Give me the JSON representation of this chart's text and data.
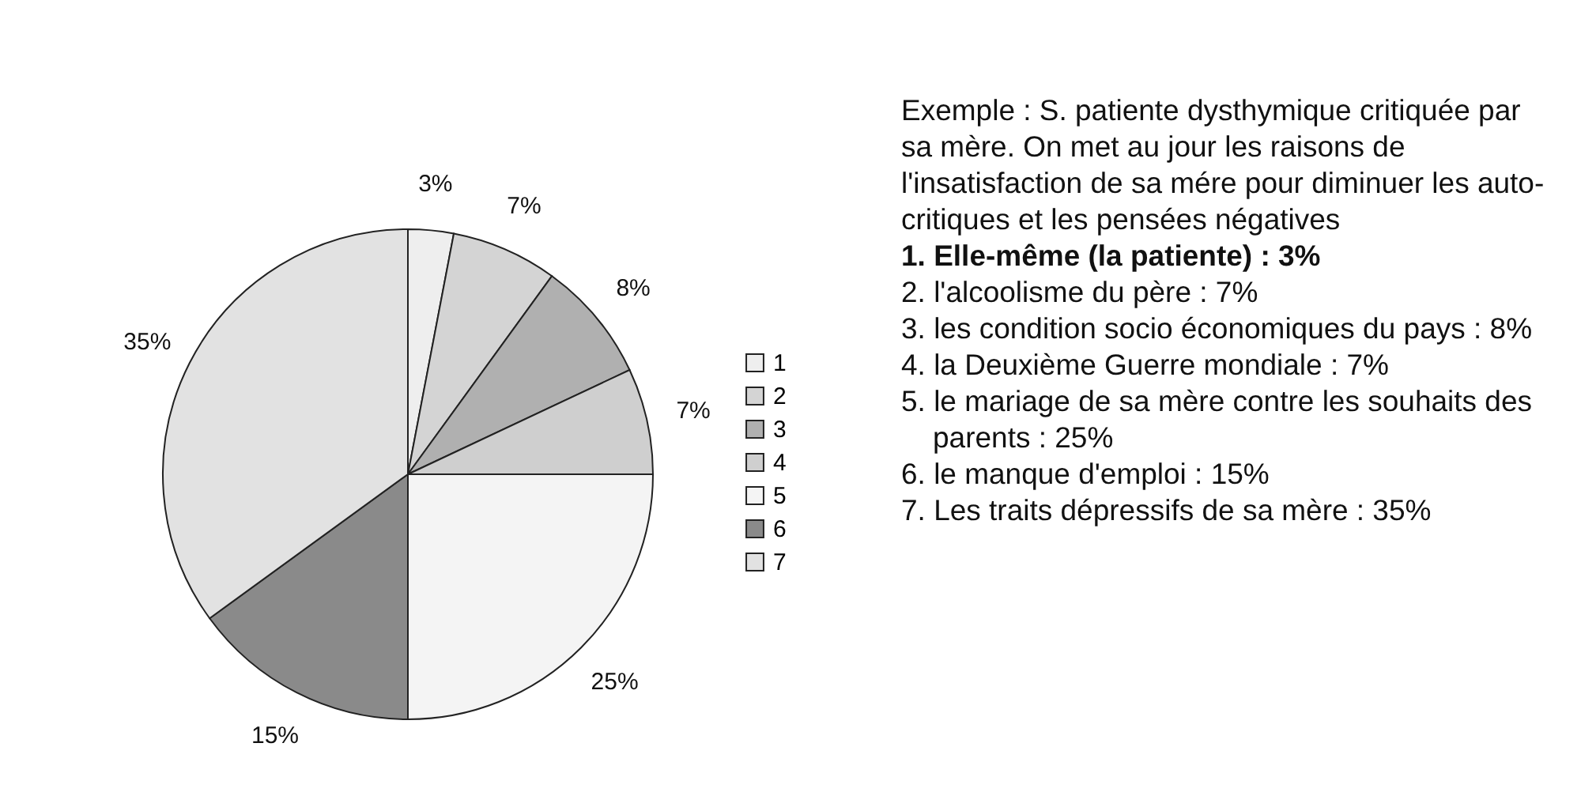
{
  "chart_data": {
    "type": "pie",
    "categories": [
      "1",
      "2",
      "3",
      "4",
      "5",
      "6",
      "7"
    ],
    "values": [
      3,
      7,
      8,
      7,
      25,
      15,
      35
    ],
    "value_labels": [
      "3%",
      "7%",
      "8%",
      "7%",
      "25%",
      "15%",
      "35%"
    ],
    "colors": [
      "#eeeeee",
      "#d4d4d4",
      "#b0b0b0",
      "#cfcfcf",
      "#f4f4f4",
      "#8a8a8a",
      "#e2e2e2"
    ],
    "legend": "right",
    "annotations": [
      "Exemple : S. patiente dysthymique critiquée par sa mère. On met au jour les raisons de l'insatisfaction de sa mére pour diminuer les auto-critiques et les pensées négatives",
      "1. Elle-même (la patiente) : 3%",
      "2. l'alcoolisme du père : 7%",
      "3. les condition socio économiques du pays : 8%",
      "4. la Deuxième Guerre mondiale : 7%",
      "5. le mariage de sa mère contre les souhaits des parents : 25%",
      "6. le manque d'emploi : 15%",
      "7. Les traits dépressifs de sa mère : 35%"
    ]
  }
}
